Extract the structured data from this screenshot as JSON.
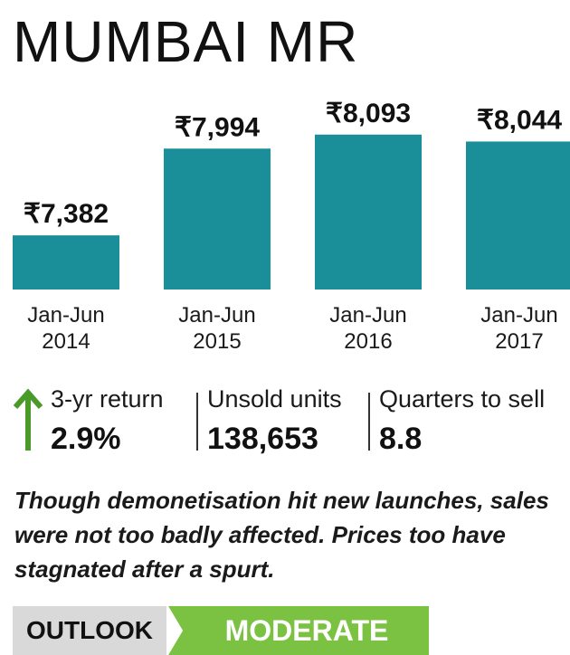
{
  "title": "MUMBAI MR",
  "chart_data": {
    "type": "bar",
    "categories": [
      "Jan-Jun\n2014",
      "Jan-Jun\n2015",
      "Jan-Jun\n2016",
      "Jan-Jun\n2017"
    ],
    "category_lines": [
      [
        "Jan-Jun",
        "2014"
      ],
      [
        "Jan-Jun",
        "2015"
      ],
      [
        "Jan-Jun",
        "2016"
      ],
      [
        "Jan-Jun",
        "2017"
      ]
    ],
    "values": [
      7382,
      7994,
      8093,
      8044
    ],
    "value_labels": [
      "₹7,382",
      "₹7,994",
      "₹8,093",
      "₹8,044"
    ],
    "ylim": [
      7000,
      8200
    ],
    "bar_color": "#1b8f99"
  },
  "stats": {
    "arrow_icon": "up-arrow-icon",
    "arrow_color": "#4a9a2a",
    "return_label": "3-yr return",
    "return_value": "2.9%",
    "unsold_label": "Unsold units",
    "unsold_value": "138,653",
    "quarters_label": "Quarters to sell",
    "quarters_value": "8.8"
  },
  "note": "Though demonetisation hit new launches, sales were not too badly affected. Prices too have stagnated after a spurt.",
  "outlook": {
    "label": "OUTLOOK",
    "value": "MODERATE",
    "label_bg": "#d9d9d9",
    "value_bg": "#7cc242"
  }
}
